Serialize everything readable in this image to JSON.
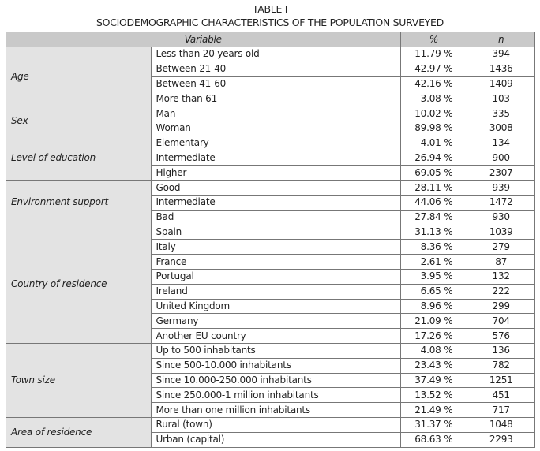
{
  "title": "TABLE I",
  "subtitle": "SOCIODEMOGRAPHIC CHARACTERISTICS OF THE POPULATION SURVEYED",
  "headers": {
    "variable": "Variable",
    "percent": "%",
    "n": "n"
  },
  "groups": [
    {
      "name": "Age",
      "rows": [
        {
          "label": "Less than 20 years old",
          "percent": "11.79 %",
          "n": "394"
        },
        {
          "label": "Between 21-40",
          "percent": "42.97 %",
          "n": "1436"
        },
        {
          "label": "Between 41-60",
          "percent": "42.16 %",
          "n": "1409"
        },
        {
          "label": "More than 61",
          "percent": "3.08 %",
          "n": "103"
        }
      ]
    },
    {
      "name": "Sex",
      "rows": [
        {
          "label": "Man",
          "percent": "10.02 %",
          "n": "335"
        },
        {
          "label": "Woman",
          "percent": "89.98 %",
          "n": "3008"
        }
      ]
    },
    {
      "name": "Level of education",
      "rows": [
        {
          "label": "Elementary",
          "percent": "4.01 %",
          "n": "134"
        },
        {
          "label": "Intermediate",
          "percent": "26.94 %",
          "n": "900"
        },
        {
          "label": "Higher",
          "percent": "69.05 %",
          "n": "2307"
        }
      ]
    },
    {
      "name": "Environment support",
      "rows": [
        {
          "label": "Good",
          "percent": "28.11 %",
          "n": "939"
        },
        {
          "label": "Intermediate",
          "percent": "44.06 %",
          "n": "1472"
        },
        {
          "label": "Bad",
          "percent": "27.84 %",
          "n": "930"
        }
      ]
    },
    {
      "name": "Country of residence",
      "rows": [
        {
          "label": "Spain",
          "percent": "31.13 %",
          "n": "1039"
        },
        {
          "label": "Italy",
          "percent": "8.36 %",
          "n": "279"
        },
        {
          "label": "France",
          "percent": "2.61 %",
          "n": "87"
        },
        {
          "label": "Portugal",
          "percent": "3.95 %",
          "n": "132"
        },
        {
          "label": "Ireland",
          "percent": "6.65 %",
          "n": "222"
        },
        {
          "label": "United Kingdom",
          "percent": "8.96 %",
          "n": "299"
        },
        {
          "label": "Germany",
          "percent": "21.09 %",
          "n": "704"
        },
        {
          "label": "Another EU country",
          "percent": "17.26 %",
          "n": "576"
        }
      ]
    },
    {
      "name": "Town size",
      "rows": [
        {
          "label": "Up to 500 inhabitants",
          "percent": "4.08 %",
          "n": "136"
        },
        {
          "label": "Since 500-10.000 inhabitants",
          "percent": "23.43 %",
          "n": "782"
        },
        {
          "label": "Since 10.000-250.000 inhabitants",
          "percent": "37.49 %",
          "n": "1251"
        },
        {
          "label": "Since 250.000-1 million inhabitants",
          "percent": "13.52 %",
          "n": "451"
        },
        {
          "label": "More than one million inhabitants",
          "percent": "21.49 %",
          "n": "717"
        }
      ]
    },
    {
      "name": "Area of residence",
      "rows": [
        {
          "label": "Rural (town)",
          "percent": "31.37 %",
          "n": "1048"
        },
        {
          "label": "Urban (capital)",
          "percent": "68.63 %",
          "n": "2293"
        }
      ]
    }
  ]
}
